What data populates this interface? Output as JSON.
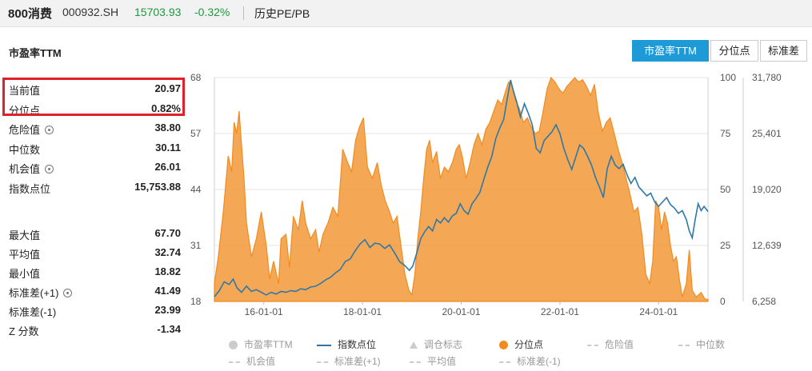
{
  "header": {
    "name": "800消费",
    "code": "000932.SH",
    "value": "15703.93",
    "change": "-0.32%",
    "tab": "历史PE/PB"
  },
  "panel_title": "市盈率TTM",
  "buttons": [
    "市盈率TTM",
    "分位点",
    "标准差"
  ],
  "stats_top": [
    {
      "label": "当前值",
      "value": "20.97",
      "gear": false
    },
    {
      "label": "分位点",
      "value": "0.82%",
      "gear": false
    },
    {
      "label": "危险值",
      "value": "38.80",
      "gear": true
    },
    {
      "label": "中位数",
      "value": "30.11",
      "gear": false
    },
    {
      "label": "机会值",
      "value": "26.01",
      "gear": true
    },
    {
      "label": "指数点位",
      "value": "15,753.88",
      "gear": false
    }
  ],
  "stats_bottom": [
    {
      "label": "最大值",
      "value": "67.70",
      "gear": false
    },
    {
      "label": "平均值",
      "value": "32.74",
      "gear": false
    },
    {
      "label": "最小值",
      "value": "18.82",
      "gear": false
    },
    {
      "label": "标准差(+1)",
      "value": "41.49",
      "gear": true
    },
    {
      "label": "标准差(-1)",
      "value": "23.99",
      "gear": false
    },
    {
      "label": "Z 分数",
      "value": "-1.34",
      "gear": false
    }
  ],
  "chart_data": {
    "type": "area",
    "x_ticks": [
      "16-01-01",
      "18-01-01",
      "20-01-01",
      "22-01-01",
      "24-01-01"
    ],
    "x_range": [
      2015.0,
      2025.0
    ],
    "left_axis": {
      "ticks": [
        "68",
        "57",
        "44",
        "31",
        "18"
      ],
      "range": [
        18,
        68
      ]
    },
    "mid_axis": {
      "ticks": [
        "100",
        "75",
        "50",
        "25",
        "0"
      ],
      "range": [
        0,
        100
      ]
    },
    "right_axis": {
      "ticks": [
        "31,780",
        "25,401",
        "19,020",
        "12,639",
        "6,258"
      ],
      "range": [
        6258,
        31780
      ]
    },
    "legend": [
      {
        "name": "市盈率TTM",
        "marker": "circle",
        "color": "#cccccc"
      },
      {
        "name": "指数点位",
        "marker": "line",
        "color": "#2e78a8"
      },
      {
        "name": "调仓标志",
        "marker": "triangle",
        "color": "#cccccc"
      },
      {
        "name": "分位点",
        "marker": "circle",
        "color": "#f18b1f"
      },
      {
        "name": "危险值",
        "marker": "dash",
        "color": "#cccccc"
      },
      {
        "name": "中位数",
        "marker": "dash",
        "color": "#cccccc"
      },
      {
        "name": "机会值",
        "marker": "dash",
        "color": "#cccccc"
      },
      {
        "name": "标准差(+1)",
        "marker": "dash",
        "color": "#cccccc"
      },
      {
        "name": "平均值",
        "marker": "dash",
        "color": "#cccccc"
      },
      {
        "name": "标准差(-1)",
        "marker": "dash",
        "color": "#cccccc"
      }
    ],
    "series": [
      {
        "name": "分位点",
        "axis": "mid",
        "color": "#f18b1f",
        "points": [
          [
            2015.0,
            8
          ],
          [
            2015.08,
            20
          ],
          [
            2015.18,
            40
          ],
          [
            2015.28,
            65
          ],
          [
            2015.35,
            58
          ],
          [
            2015.4,
            80
          ],
          [
            2015.45,
            75
          ],
          [
            2015.5,
            85
          ],
          [
            2015.55,
            70
          ],
          [
            2015.6,
            55
          ],
          [
            2015.65,
            35
          ],
          [
            2015.75,
            20
          ],
          [
            2015.85,
            28
          ],
          [
            2015.95,
            40
          ],
          [
            2016.05,
            25
          ],
          [
            2016.12,
            10
          ],
          [
            2016.2,
            18
          ],
          [
            2016.3,
            8
          ],
          [
            2016.35,
            28
          ],
          [
            2016.45,
            30
          ],
          [
            2016.52,
            15
          ],
          [
            2016.6,
            38
          ],
          [
            2016.7,
            32
          ],
          [
            2016.78,
            45
          ],
          [
            2016.85,
            35
          ],
          [
            2016.95,
            28
          ],
          [
            2017.05,
            32
          ],
          [
            2017.12,
            22
          ],
          [
            2017.2,
            30
          ],
          [
            2017.3,
            35
          ],
          [
            2017.4,
            42
          ],
          [
            2017.5,
            38
          ],
          [
            2017.6,
            68
          ],
          [
            2017.7,
            62
          ],
          [
            2017.78,
            58
          ],
          [
            2017.86,
            72
          ],
          [
            2017.94,
            78
          ],
          [
            2018.02,
            82
          ],
          [
            2018.1,
            60
          ],
          [
            2018.2,
            55
          ],
          [
            2018.3,
            62
          ],
          [
            2018.38,
            52
          ],
          [
            2018.46,
            45
          ],
          [
            2018.55,
            40
          ],
          [
            2018.62,
            35
          ],
          [
            2018.7,
            38
          ],
          [
            2018.78,
            25
          ],
          [
            2018.86,
            12
          ],
          [
            2018.94,
            5
          ],
          [
            2019.0,
            3
          ],
          [
            2019.06,
            12
          ],
          [
            2019.12,
            28
          ],
          [
            2019.18,
            40
          ],
          [
            2019.24,
            55
          ],
          [
            2019.3,
            68
          ],
          [
            2019.36,
            72
          ],
          [
            2019.42,
            62
          ],
          [
            2019.5,
            67
          ],
          [
            2019.58,
            55
          ],
          [
            2019.66,
            60
          ],
          [
            2019.74,
            58
          ],
          [
            2019.82,
            62
          ],
          [
            2019.9,
            68
          ],
          [
            2019.96,
            70
          ],
          [
            2020.02,
            65
          ],
          [
            2020.1,
            55
          ],
          [
            2020.18,
            62
          ],
          [
            2020.26,
            70
          ],
          [
            2020.34,
            75
          ],
          [
            2020.42,
            70
          ],
          [
            2020.5,
            77
          ],
          [
            2020.58,
            80
          ],
          [
            2020.66,
            85
          ],
          [
            2020.74,
            90
          ],
          [
            2020.82,
            88
          ],
          [
            2020.9,
            94
          ],
          [
            2020.96,
            98
          ],
          [
            2021.02,
            97
          ],
          [
            2021.1,
            90
          ],
          [
            2021.18,
            86
          ],
          [
            2021.26,
            80
          ],
          [
            2021.34,
            82
          ],
          [
            2021.42,
            78
          ],
          [
            2021.5,
            75
          ],
          [
            2021.58,
            76
          ],
          [
            2021.66,
            85
          ],
          [
            2021.74,
            95
          ],
          [
            2021.82,
            100
          ],
          [
            2021.9,
            98
          ],
          [
            2021.98,
            95
          ],
          [
            2022.06,
            93
          ],
          [
            2022.14,
            96
          ],
          [
            2022.22,
            98
          ],
          [
            2022.3,
            100
          ],
          [
            2022.38,
            98
          ],
          [
            2022.46,
            99
          ],
          [
            2022.54,
            96
          ],
          [
            2022.62,
            92
          ],
          [
            2022.7,
            97
          ],
          [
            2022.78,
            84
          ],
          [
            2022.86,
            76
          ],
          [
            2022.94,
            80
          ],
          [
            2023.02,
            82
          ],
          [
            2023.1,
            75
          ],
          [
            2023.18,
            68
          ],
          [
            2023.26,
            62
          ],
          [
            2023.34,
            55
          ],
          [
            2023.42,
            48
          ],
          [
            2023.5,
            40
          ],
          [
            2023.58,
            42
          ],
          [
            2023.66,
            30
          ],
          [
            2023.74,
            12
          ],
          [
            2023.82,
            8
          ],
          [
            2023.88,
            18
          ],
          [
            2023.94,
            45
          ],
          [
            2024.0,
            42
          ],
          [
            2024.06,
            32
          ],
          [
            2024.12,
            40
          ],
          [
            2024.18,
            35
          ],
          [
            2024.24,
            25
          ],
          [
            2024.3,
            18
          ],
          [
            2024.36,
            20
          ],
          [
            2024.42,
            10
          ],
          [
            2024.48,
            2
          ],
          [
            2024.56,
            8
          ],
          [
            2024.62,
            23
          ],
          [
            2024.68,
            5
          ],
          [
            2024.76,
            2
          ],
          [
            2024.86,
            4
          ],
          [
            2024.94,
            1
          ],
          [
            2025.0,
            1
          ]
        ]
      },
      {
        "name": "指数点位",
        "axis": "right",
        "color": "#2e78a8",
        "points": [
          [
            2015.0,
            6800
          ],
          [
            2015.1,
            7500
          ],
          [
            2015.2,
            8500
          ],
          [
            2015.3,
            8200
          ],
          [
            2015.38,
            8800
          ],
          [
            2015.46,
            7800
          ],
          [
            2015.55,
            7300
          ],
          [
            2015.65,
            8000
          ],
          [
            2015.75,
            7400
          ],
          [
            2015.85,
            7600
          ],
          [
            2015.95,
            7300
          ],
          [
            2016.05,
            7000
          ],
          [
            2016.15,
            7300
          ],
          [
            2016.25,
            7100
          ],
          [
            2016.35,
            7400
          ],
          [
            2016.45,
            7300
          ],
          [
            2016.55,
            7500
          ],
          [
            2016.65,
            7400
          ],
          [
            2016.75,
            7700
          ],
          [
            2016.85,
            7600
          ],
          [
            2016.95,
            7900
          ],
          [
            2017.05,
            8000
          ],
          [
            2017.15,
            8300
          ],
          [
            2017.25,
            8700
          ],
          [
            2017.35,
            9000
          ],
          [
            2017.45,
            9500
          ],
          [
            2017.55,
            9900
          ],
          [
            2017.65,
            10800
          ],
          [
            2017.75,
            11100
          ],
          [
            2017.85,
            12000
          ],
          [
            2017.95,
            12800
          ],
          [
            2018.05,
            13300
          ],
          [
            2018.15,
            12400
          ],
          [
            2018.25,
            12900
          ],
          [
            2018.35,
            12800
          ],
          [
            2018.45,
            12300
          ],
          [
            2018.55,
            12700
          ],
          [
            2018.65,
            11800
          ],
          [
            2018.75,
            10800
          ],
          [
            2018.85,
            10400
          ],
          [
            2018.95,
            9800
          ],
          [
            2019.02,
            10300
          ],
          [
            2019.1,
            11800
          ],
          [
            2019.18,
            13400
          ],
          [
            2019.26,
            14200
          ],
          [
            2019.34,
            14800
          ],
          [
            2019.42,
            14300
          ],
          [
            2019.5,
            15600
          ],
          [
            2019.58,
            15200
          ],
          [
            2019.66,
            15800
          ],
          [
            2019.74,
            15300
          ],
          [
            2019.82,
            16000
          ],
          [
            2019.9,
            16300
          ],
          [
            2019.98,
            17400
          ],
          [
            2020.06,
            16600
          ],
          [
            2020.14,
            16200
          ],
          [
            2020.22,
            17400
          ],
          [
            2020.3,
            18000
          ],
          [
            2020.38,
            18700
          ],
          [
            2020.46,
            20200
          ],
          [
            2020.54,
            21600
          ],
          [
            2020.62,
            22800
          ],
          [
            2020.7,
            24800
          ],
          [
            2020.78,
            26000
          ],
          [
            2020.86,
            27000
          ],
          [
            2020.94,
            29600
          ],
          [
            2021.0,
            31500
          ],
          [
            2021.06,
            30200
          ],
          [
            2021.12,
            29100
          ],
          [
            2021.2,
            27300
          ],
          [
            2021.28,
            28800
          ],
          [
            2021.36,
            27700
          ],
          [
            2021.44,
            26400
          ],
          [
            2021.52,
            23700
          ],
          [
            2021.6,
            23200
          ],
          [
            2021.68,
            24600
          ],
          [
            2021.76,
            25100
          ],
          [
            2021.84,
            25600
          ],
          [
            2021.92,
            26400
          ],
          [
            2022.0,
            25400
          ],
          [
            2022.08,
            23700
          ],
          [
            2022.16,
            22400
          ],
          [
            2022.24,
            21300
          ],
          [
            2022.32,
            22700
          ],
          [
            2022.4,
            24100
          ],
          [
            2022.48,
            23700
          ],
          [
            2022.56,
            22800
          ],
          [
            2022.64,
            21800
          ],
          [
            2022.72,
            20400
          ],
          [
            2022.8,
            19300
          ],
          [
            2022.88,
            18100
          ],
          [
            2022.96,
            21400
          ],
          [
            2023.04,
            22800
          ],
          [
            2023.12,
            21800
          ],
          [
            2023.2,
            21400
          ],
          [
            2023.28,
            21900
          ],
          [
            2023.36,
            20700
          ],
          [
            2023.44,
            19700
          ],
          [
            2023.52,
            20400
          ],
          [
            2023.6,
            19300
          ],
          [
            2023.68,
            18800
          ],
          [
            2023.76,
            18300
          ],
          [
            2023.84,
            18600
          ],
          [
            2023.92,
            17600
          ],
          [
            2024.0,
            17100
          ],
          [
            2024.08,
            17600
          ],
          [
            2024.16,
            18100
          ],
          [
            2024.24,
            17300
          ],
          [
            2024.32,
            16900
          ],
          [
            2024.4,
            16300
          ],
          [
            2024.48,
            16600
          ],
          [
            2024.56,
            15600
          ],
          [
            2024.62,
            14300
          ],
          [
            2024.68,
            13500
          ],
          [
            2024.74,
            15600
          ],
          [
            2024.8,
            17400
          ],
          [
            2024.86,
            16600
          ],
          [
            2024.92,
            17100
          ],
          [
            2025.0,
            16500
          ]
        ]
      }
    ]
  }
}
